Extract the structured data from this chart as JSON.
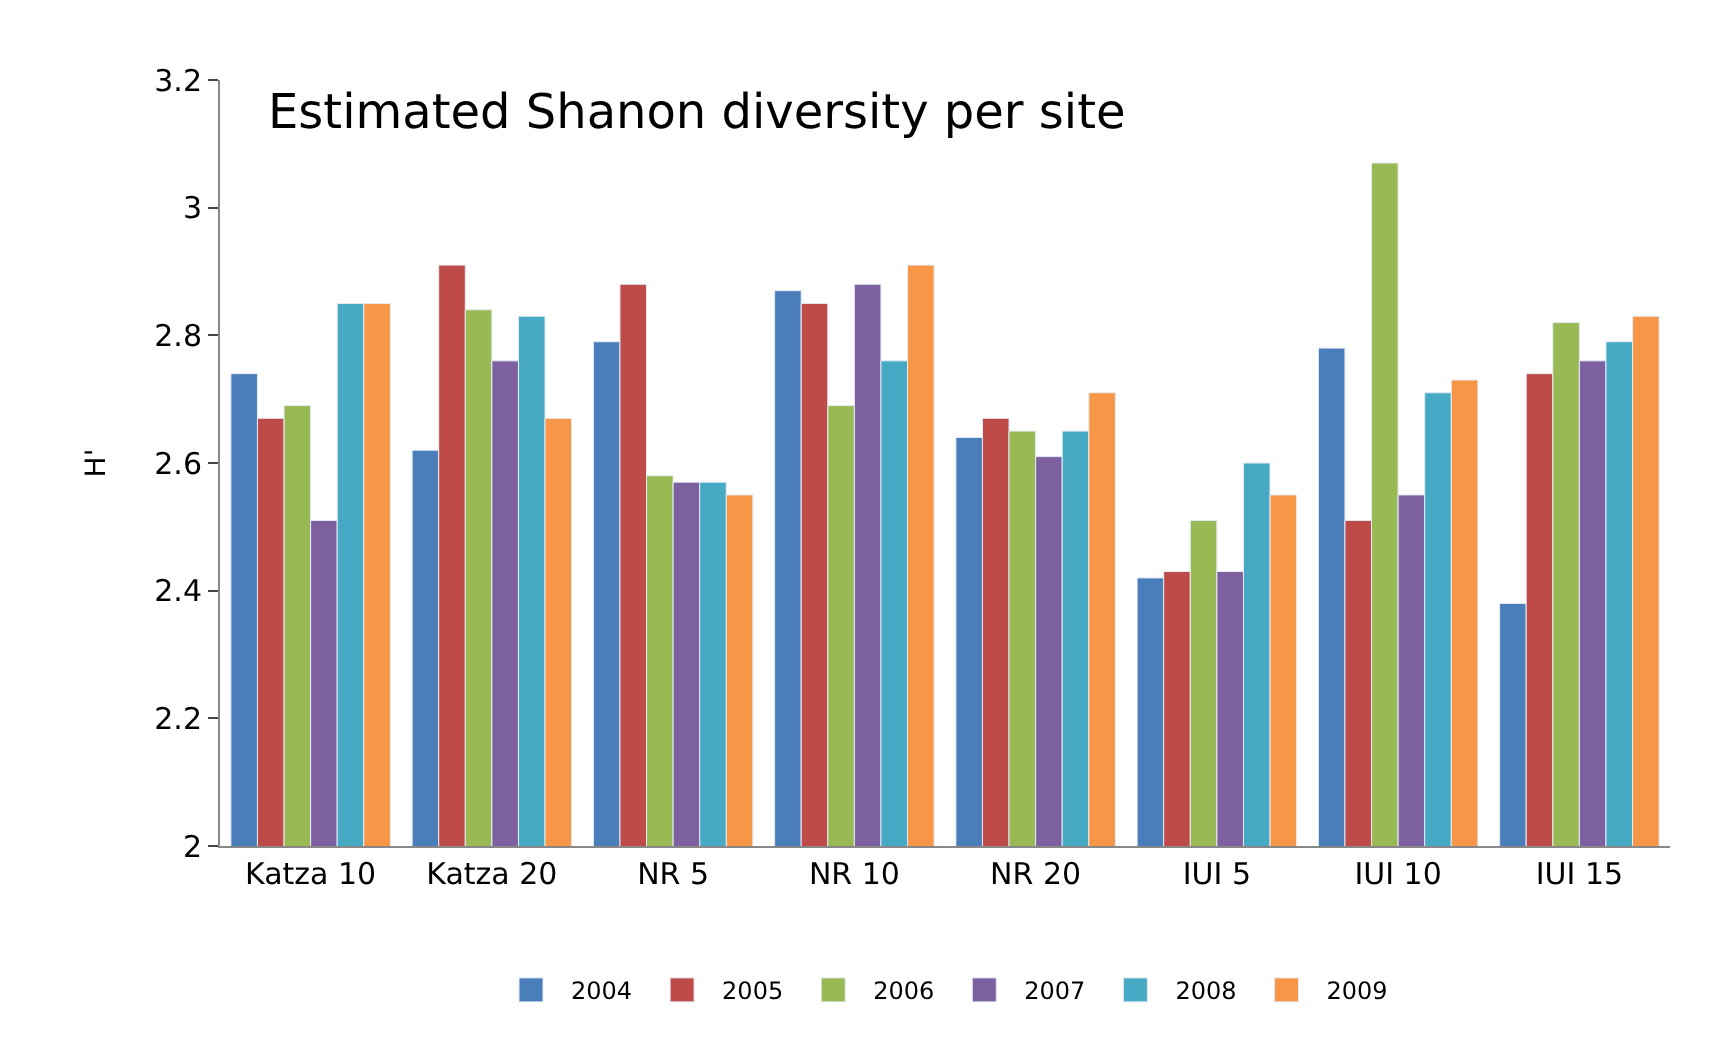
{
  "chart_data": {
    "type": "bar",
    "title": "Estimated Shanon diversity per site",
    "ylabel": "H'",
    "categories": [
      "Katza 10",
      "Katza 20",
      "NR 5",
      "NR 10",
      "NR 20",
      "IUI 5",
      "IUI 10",
      "IUI 15"
    ],
    "series": [
      {
        "name": "2004",
        "color": "#4a7ebb",
        "values": [
          2.74,
          2.62,
          2.79,
          2.87,
          2.64,
          2.42,
          2.78,
          2.38
        ]
      },
      {
        "name": "2005",
        "color": "#be4b48",
        "values": [
          2.67,
          2.91,
          2.88,
          2.85,
          2.67,
          2.43,
          2.51,
          2.74
        ]
      },
      {
        "name": "2006",
        "color": "#98b954",
        "values": [
          2.69,
          2.84,
          2.58,
          2.69,
          2.65,
          2.51,
          3.07,
          2.82
        ]
      },
      {
        "name": "2007",
        "color": "#7d60a0",
        "values": [
          2.51,
          2.76,
          2.57,
          2.88,
          2.61,
          2.43,
          2.55,
          2.76
        ]
      },
      {
        "name": "2008",
        "color": "#46aac5",
        "values": [
          2.85,
          2.83,
          2.57,
          2.76,
          2.65,
          2.6,
          2.71,
          2.79
        ]
      },
      {
        "name": "2009",
        "color": "#f79646",
        "values": [
          2.85,
          2.67,
          2.55,
          2.91,
          2.71,
          2.55,
          2.73,
          2.83
        ]
      }
    ],
    "ylim": [
      2,
      3.2
    ],
    "yticks": [
      2,
      2.2,
      2.4,
      2.6,
      2.8,
      3,
      3.2
    ],
    "legend": "bottom"
  }
}
